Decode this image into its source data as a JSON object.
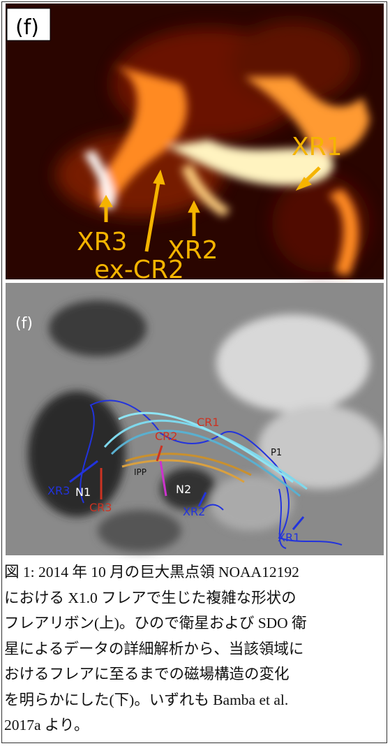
{
  "figure": {
    "top_panel": {
      "panel_label": "(f)",
      "labels": [
        "XR1",
        "XR3",
        "ex-CR2",
        "XR2"
      ]
    },
    "bottom_panel": {
      "panel_label": "(f)",
      "labels": [
        "CR2",
        "CR1",
        "P1",
        "IPP",
        "N1",
        "N2",
        "XR3",
        "CR3",
        "XR2",
        "XR1"
      ]
    },
    "caption": [
      "図 1: 2014 年 10 月の巨大黒点領 NOAA12192",
      "における X1.0 フレアで生じた複雑な形状の",
      "フレアリボン(上)。ひので衛星および SDO 衛",
      "星によるデータの詳細解析から、当該領域に",
      "おけるフレアに至るまでの磁場構造の変化",
      "を明らかにした(下)。いずれも Bamba et al.",
      "2017a より。"
    ]
  }
}
